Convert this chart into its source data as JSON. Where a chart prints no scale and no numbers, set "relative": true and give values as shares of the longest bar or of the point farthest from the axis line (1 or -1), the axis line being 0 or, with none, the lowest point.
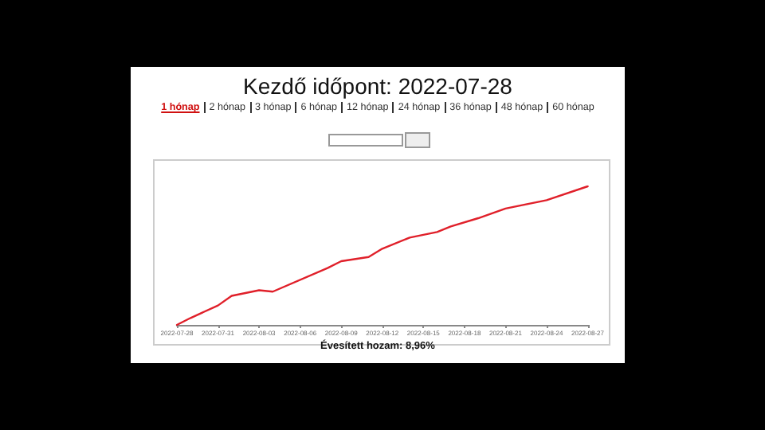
{
  "chart_data": {
    "type": "line",
    "title": "Kezdő időpont: 2022-07-28",
    "annotations": [
      "1 hónap",
      "2 hónap",
      "3 hónap",
      "6 hónap",
      "12 hónap",
      "24 hónap",
      "36 hónap",
      "48 hónap",
      "60 hónap",
      "Évesített hozam: 8,96%"
    ],
    "x": [
      "2022-07-28",
      "2022-07-29",
      "2022-07-31",
      "2022-08-01",
      "2022-08-03",
      "2022-08-04",
      "2022-08-08",
      "2022-08-09",
      "2022-08-11",
      "2022-08-12",
      "2022-08-14",
      "2022-08-16",
      "2022-08-17",
      "2022-08-19",
      "2022-08-21",
      "2022-08-23",
      "2022-08-24",
      "2022-08-27"
    ],
    "series": [
      {
        "color": "#e0202a",
        "values": [
          0,
          0.05,
          0.14,
          0.21,
          0.25,
          0.24,
          0.41,
          0.46,
          0.49,
          0.55,
          0.63,
          0.67,
          0.71,
          0.77,
          0.84,
          0.88,
          0.9,
          1
        ]
      }
    ],
    "relative": true,
    "xlim": [
      "2022-07-28",
      "2022-08-27"
    ],
    "xticks": [
      "2022-07-28",
      "2022-07-31",
      "2022-08-03",
      "2022-08-06",
      "2022-08-09",
      "2022-08-12",
      "2022-08-15",
      "2022-08-18",
      "2022-08-21",
      "2022-08-24",
      "2022-08-27"
    ],
    "tick_labels": "x",
    "marker": "none",
    "line_style": "solid"
  }
}
